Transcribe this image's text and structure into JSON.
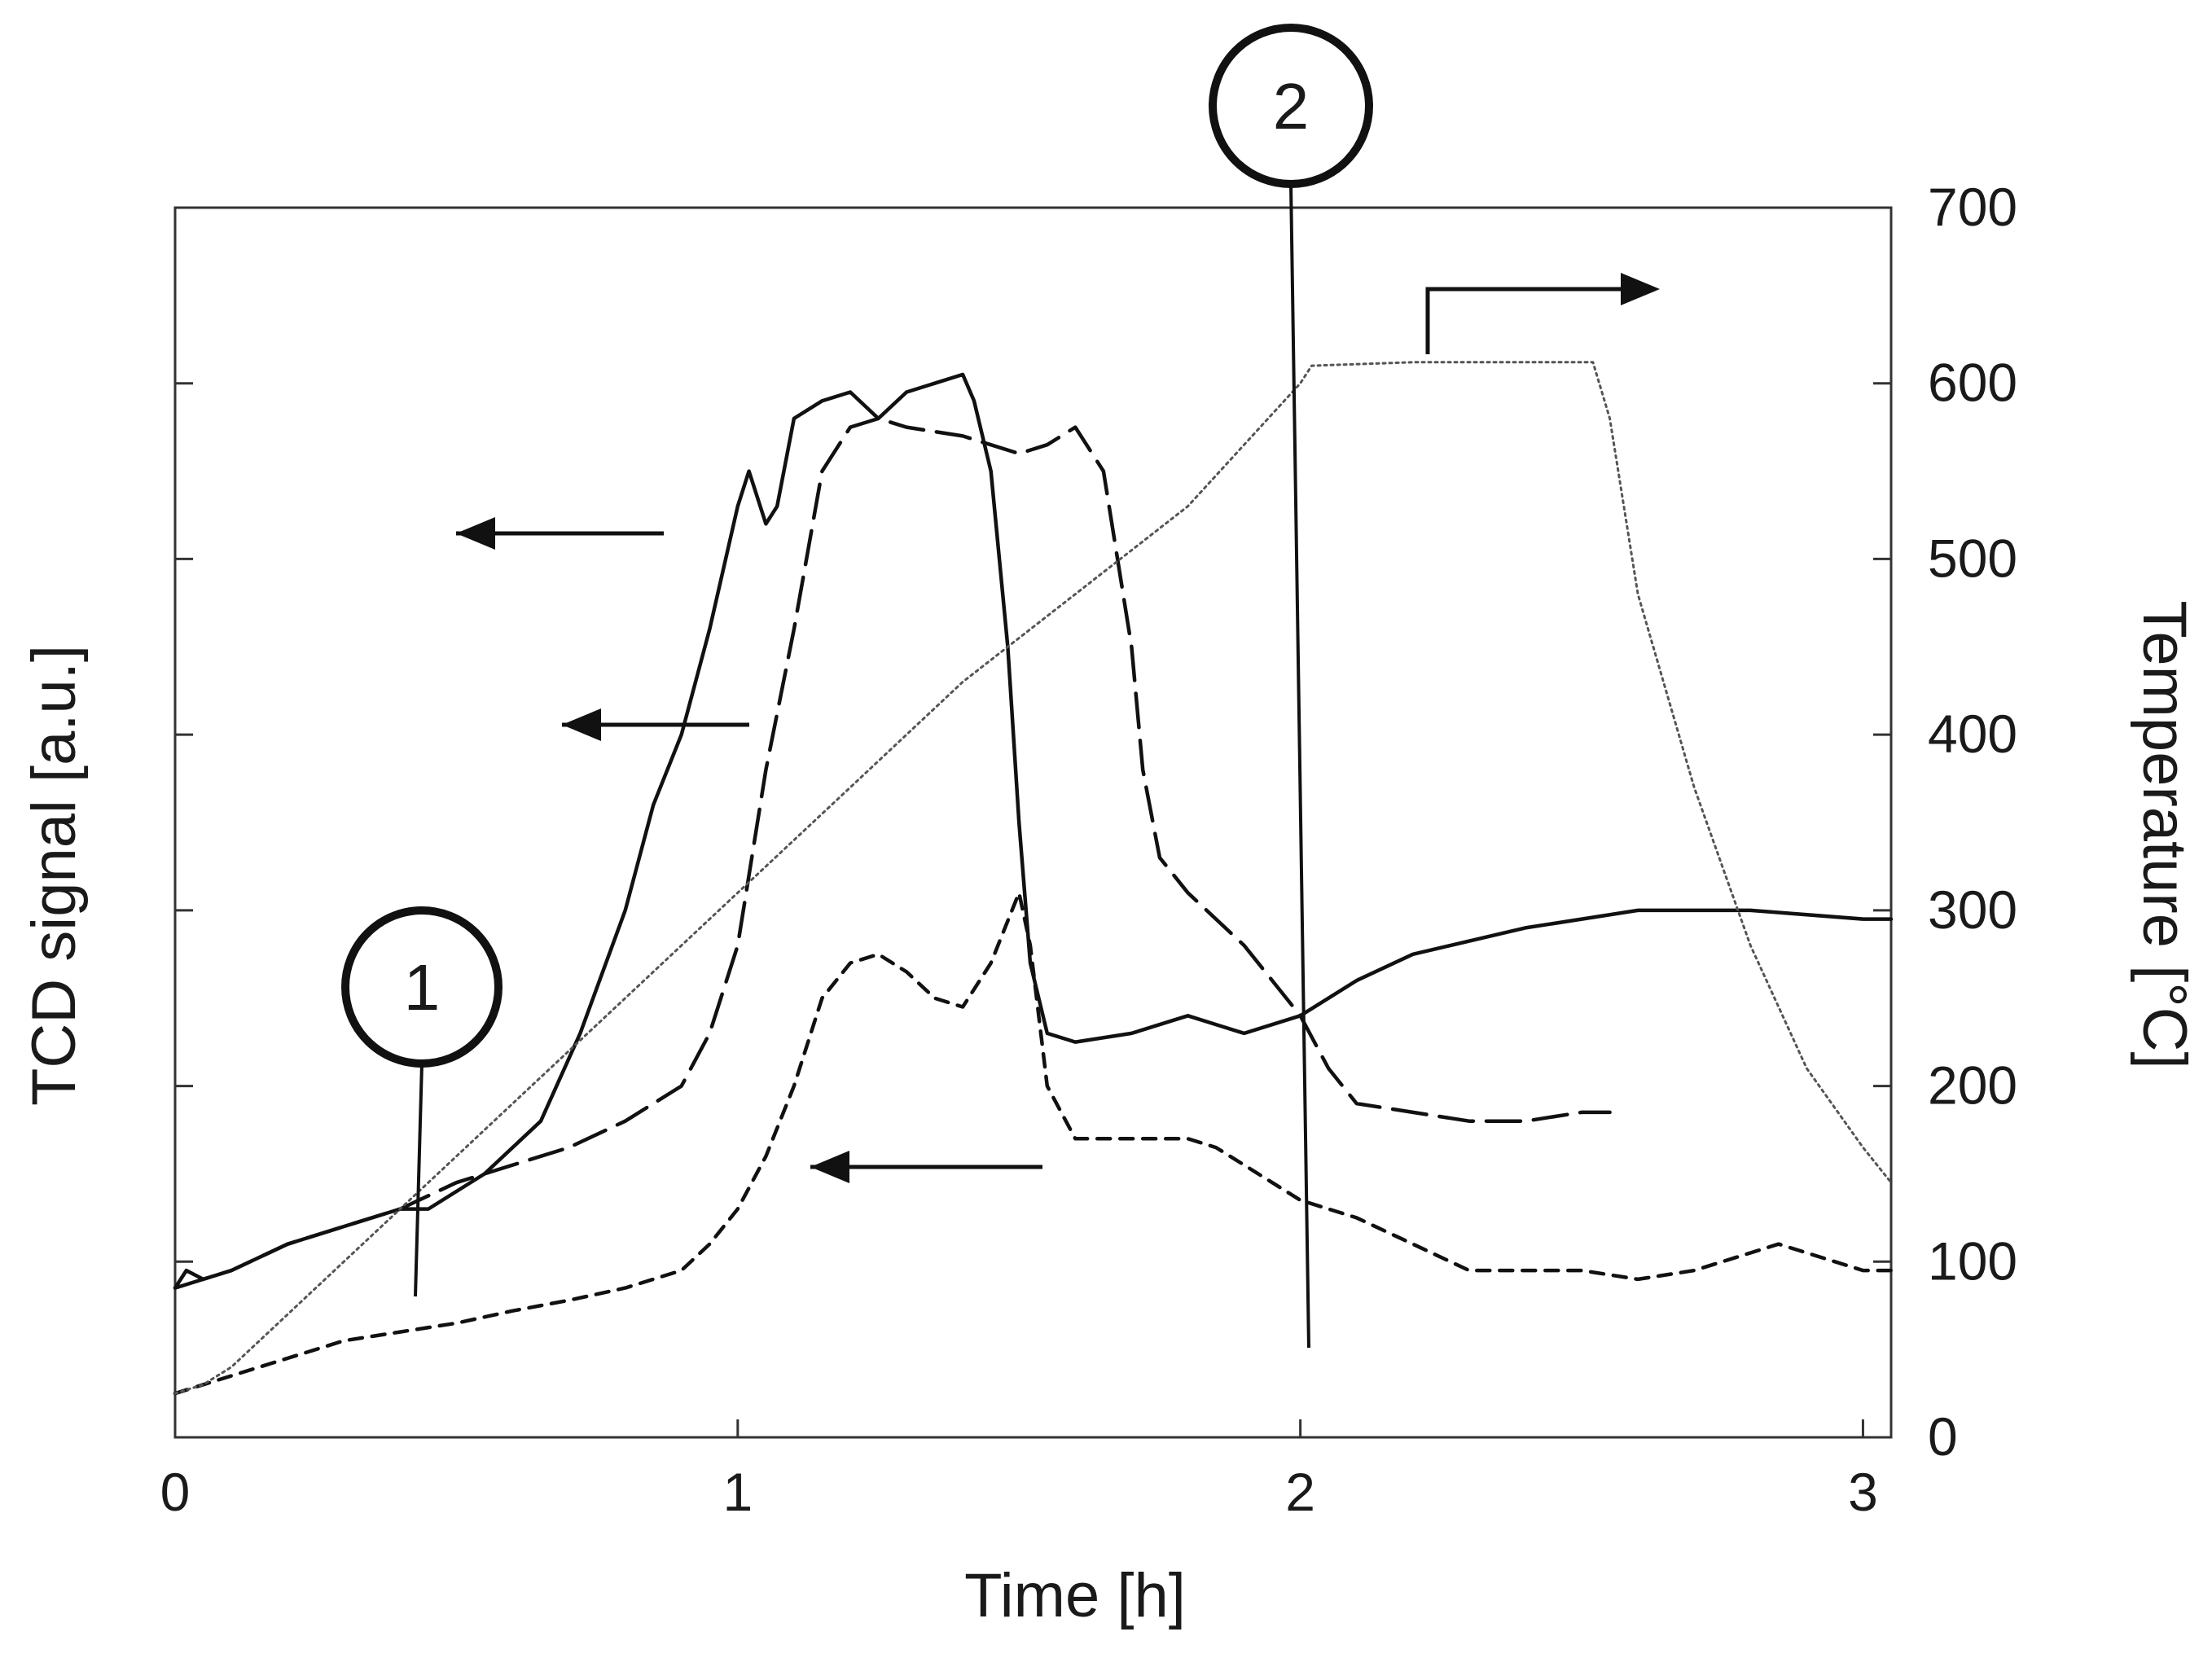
{
  "chart_data": {
    "type": "line",
    "title": "",
    "xlabel": "Time [h]",
    "ylabel": "TCD signal [a.u.]",
    "y2label": "Temperature [°C]",
    "xlim": [
      0,
      3.05
    ],
    "ylim": [
      0,
      7
    ],
    "y2lim": [
      0,
      700
    ],
    "xticks": [
      "0",
      "1",
      "2",
      "3"
    ],
    "xtick_values": [
      0,
      1,
      2,
      3
    ],
    "y2ticks": [
      "0",
      "100",
      "200",
      "300",
      "400",
      "500",
      "600",
      "700"
    ],
    "y2tick_values": [
      0,
      100,
      200,
      300,
      400,
      500,
      600,
      700
    ],
    "yticks_unlabeled": [
      1,
      2,
      3,
      4,
      5,
      6
    ],
    "grid": false,
    "series": [
      {
        "name": "TCD signal (solid)",
        "axis": "left",
        "style": "solid",
        "x": [
          0,
          0.02,
          0.05,
          0.1,
          0.2,
          0.3,
          0.4,
          0.45,
          0.55,
          0.65,
          0.72,
          0.8,
          0.85,
          0.9,
          0.95,
          1.0,
          1.02,
          1.05,
          1.07,
          1.1,
          1.15,
          1.2,
          1.25,
          1.3,
          1.35,
          1.4,
          1.42,
          1.45,
          1.48,
          1.5,
          1.52,
          1.55,
          1.6,
          1.7,
          1.8,
          1.85,
          1.9,
          2.0,
          2.1,
          2.2,
          2.4,
          2.6,
          2.8,
          3.0,
          3.05
        ],
        "values": [
          0.85,
          0.95,
          0.9,
          0.95,
          1.1,
          1.2,
          1.3,
          1.3,
          1.5,
          1.8,
          2.3,
          3.0,
          3.6,
          4.0,
          4.6,
          5.3,
          5.5,
          5.2,
          5.3,
          5.8,
          5.9,
          5.95,
          5.8,
          5.95,
          6.0,
          6.05,
          5.9,
          5.5,
          4.5,
          3.5,
          2.7,
          2.3,
          2.25,
          2.3,
          2.4,
          2.35,
          2.3,
          2.4,
          2.6,
          2.75,
          2.9,
          3.0,
          3.0,
          2.95,
          2.95
        ]
      },
      {
        "name": "TCD signal (long dash)",
        "axis": "left",
        "style": "long-dash",
        "x": [
          0,
          0.1,
          0.2,
          0.3,
          0.4,
          0.5,
          0.6,
          0.7,
          0.8,
          0.9,
          0.95,
          1.0,
          1.05,
          1.1,
          1.15,
          1.2,
          1.25,
          1.3,
          1.4,
          1.5,
          1.55,
          1.6,
          1.65,
          1.7,
          1.72,
          1.75,
          1.8,
          1.9,
          1.95,
          2.0,
          2.05,
          2.1,
          2.2,
          2.3,
          2.4,
          2.5,
          2.55
        ],
        "values": [
          0.85,
          0.95,
          1.1,
          1.2,
          1.3,
          1.45,
          1.55,
          1.65,
          1.8,
          2.0,
          2.3,
          2.8,
          3.8,
          4.6,
          5.5,
          5.75,
          5.8,
          5.75,
          5.7,
          5.6,
          5.65,
          5.75,
          5.5,
          4.5,
          3.8,
          3.3,
          3.1,
          2.8,
          2.6,
          2.4,
          2.1,
          1.9,
          1.85,
          1.8,
          1.8,
          1.85,
          1.85
        ]
      },
      {
        "name": "TCD signal (short dash)",
        "axis": "left",
        "style": "short-dash",
        "x": [
          0,
          0.1,
          0.2,
          0.3,
          0.4,
          0.5,
          0.6,
          0.7,
          0.8,
          0.9,
          0.95,
          1.0,
          1.05,
          1.1,
          1.15,
          1.2,
          1.25,
          1.3,
          1.35,
          1.4,
          1.45,
          1.5,
          1.52,
          1.55,
          1.6,
          1.7,
          1.8,
          1.85,
          1.9,
          2.0,
          2.1,
          2.2,
          2.3,
          2.4,
          2.5,
          2.6,
          2.7,
          2.8,
          2.85,
          2.9,
          3.0,
          3.05
        ],
        "values": [
          0.25,
          0.35,
          0.45,
          0.55,
          0.6,
          0.65,
          0.72,
          0.78,
          0.85,
          0.95,
          1.1,
          1.3,
          1.6,
          2.0,
          2.5,
          2.7,
          2.75,
          2.65,
          2.5,
          2.45,
          2.7,
          3.1,
          2.8,
          2.0,
          1.7,
          1.7,
          1.7,
          1.65,
          1.55,
          1.35,
          1.25,
          1.1,
          0.95,
          0.95,
          0.95,
          0.9,
          0.95,
          1.05,
          1.1,
          1.05,
          0.95,
          0.95
        ]
      },
      {
        "name": "Temperature (dotted)",
        "axis": "right",
        "style": "dotted",
        "x": [
          0,
          0.05,
          0.1,
          0.2,
          0.3,
          0.4,
          0.5,
          0.6,
          0.8,
          1.0,
          1.2,
          1.4,
          1.6,
          1.8,
          2.0,
          2.02,
          2.2,
          2.4,
          2.52,
          2.55,
          2.6,
          2.7,
          2.8,
          2.9,
          3.0,
          3.05
        ],
        "values": [
          25,
          30,
          40,
          70,
          100,
          130,
          160,
          190,
          250,
          310,
          370,
          430,
          480,
          530,
          600,
          610,
          612,
          612,
          612,
          580,
          480,
          370,
          280,
          210,
          165,
          145
        ]
      }
    ],
    "annotations": [
      {
        "label": "1",
        "type": "circled-marker",
        "x": 0.43
      },
      {
        "label": "2",
        "type": "circled-marker",
        "x_top": 2.0,
        "x_bottom": 2.02
      }
    ],
    "arrows": [
      {
        "direction": "left",
        "target_axis": "left",
        "near_series": "TCD signal (solid)"
      },
      {
        "direction": "left",
        "target_axis": "left",
        "near_series": "TCD signal (long dash)"
      },
      {
        "direction": "left",
        "target_axis": "left",
        "near_series": "TCD signal (short dash)"
      },
      {
        "direction": "right",
        "target_axis": "right",
        "near_series": "Temperature (dotted)"
      }
    ]
  }
}
